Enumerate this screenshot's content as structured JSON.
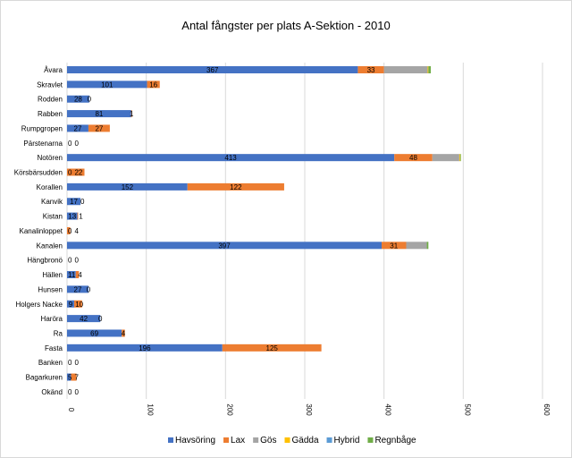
{
  "chart_data": {
    "type": "bar",
    "orientation": "horizontal",
    "stacked": true,
    "title": "Antal fångster per plats A-Sektion - 2010",
    "xlabel": "",
    "ylabel": "",
    "xlim": [
      0,
      600
    ],
    "x_ticks": [
      "0",
      "100",
      "200",
      "300",
      "400",
      "500",
      "600"
    ],
    "grid": true,
    "legend_position": "bottom",
    "categories": [
      "Åvara",
      "Skravlet",
      "Rodden",
      "Rabben",
      "Rumpgropen",
      "Pärstenarna",
      "Notören",
      "Körsbärsudden",
      "Korallen",
      "Kanvik",
      "Kistan",
      "Kanalinloppet",
      "Kanalen",
      "Hängbronö",
      "Hällen",
      "Hunsen",
      "Holgers Nacke",
      "Haröra",
      "Ra",
      "Fasta",
      "Banken",
      "Bagarkuren",
      "Okänd"
    ],
    "series": [
      {
        "name": "Havsöring",
        "color": "#4472c4",
        "labels": true,
        "values": [
          367,
          101,
          28,
          81,
          27,
          0,
          413,
          0,
          152,
          17,
          13,
          0,
          397,
          0,
          11,
          27,
          9,
          42,
          69,
          196,
          0,
          5,
          0
        ]
      },
      {
        "name": "Lax",
        "color": "#ed7d31",
        "labels": true,
        "values": [
          33,
          16,
          0,
          1,
          27,
          0,
          48,
          22,
          122,
          0,
          1,
          4,
          31,
          0,
          4,
          0,
          10,
          0,
          4,
          125,
          0,
          7,
          0
        ]
      },
      {
        "name": "Gös",
        "color": "#a5a5a5",
        "labels": false,
        "values": [
          55,
          0,
          0,
          0,
          0,
          0,
          34,
          0,
          0,
          0,
          0,
          0,
          26,
          0,
          0,
          0,
          0,
          0,
          0,
          0,
          0,
          0,
          0
        ]
      },
      {
        "name": "Gädda",
        "color": "#ffc000",
        "labels": false,
        "values": [
          1,
          0,
          0,
          0,
          0,
          0,
          1,
          0,
          0,
          0,
          0,
          0,
          0,
          0,
          0,
          0,
          0,
          0,
          0,
          0,
          0,
          0,
          0
        ]
      },
      {
        "name": "Hybrid",
        "color": "#5b9bd5",
        "labels": false,
        "values": [
          0,
          0,
          0,
          0,
          0,
          0,
          0,
          0,
          0,
          0,
          0,
          0,
          0,
          0,
          0,
          0,
          0,
          0,
          0,
          0,
          0,
          0,
          0
        ]
      },
      {
        "name": "Regnbåge",
        "color": "#70ad47",
        "labels": false,
        "values": [
          3,
          0,
          0,
          0,
          0,
          0,
          1,
          0,
          0,
          0,
          0,
          0,
          2,
          0,
          0,
          0,
          0,
          0,
          0,
          0,
          0,
          0,
          0
        ]
      }
    ]
  }
}
